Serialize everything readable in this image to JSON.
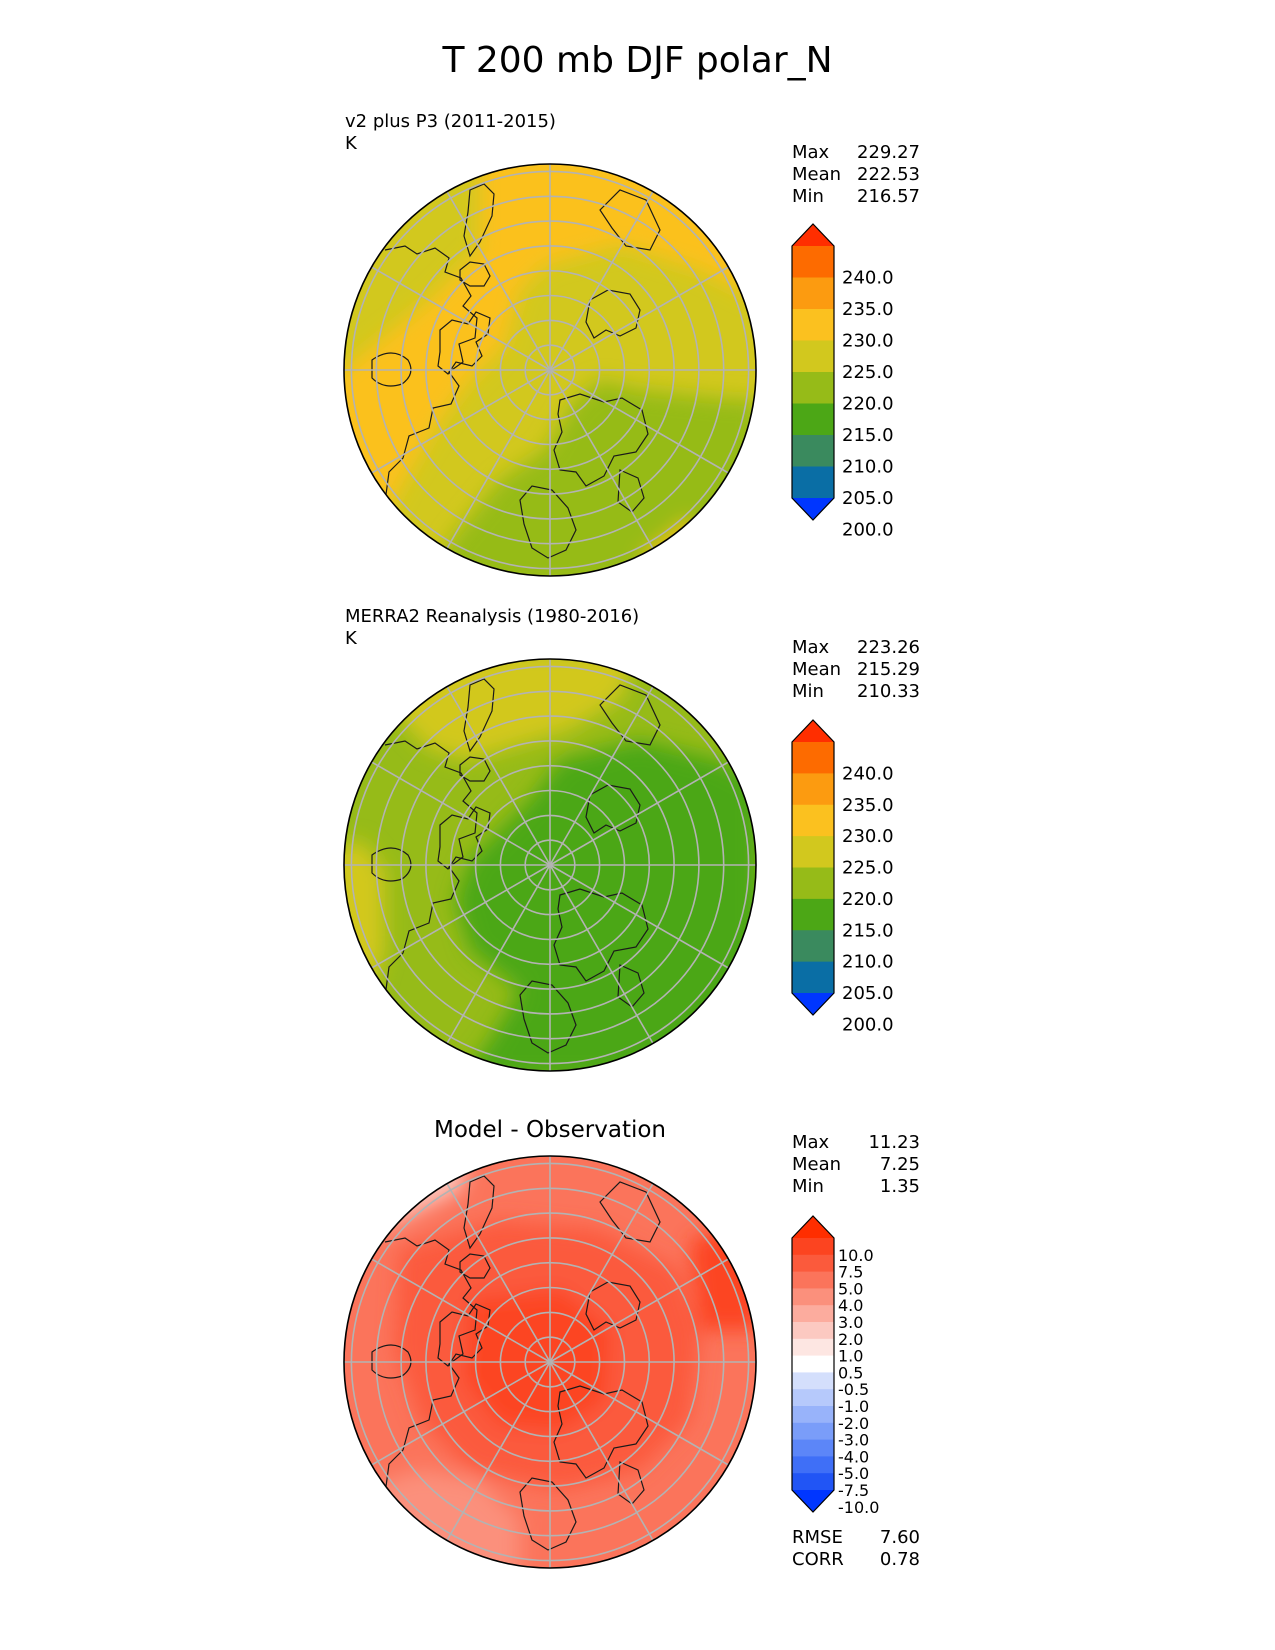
{
  "title": "T 200 mb DJF polar_N",
  "colors": {
    "abs_levels": [
      "#0036ff",
      "#0a6ea5",
      "#3a8a5e",
      "#4ca716",
      "#96bb18",
      "#d2c81e",
      "#fbc11f",
      "#fc9b10",
      "#fd6b00",
      "#ff2e00"
    ],
    "diff_levels": [
      "#0036ff",
      "#2155f5",
      "#3f6ff7",
      "#5c86f8",
      "#7a9df9",
      "#98b3fa",
      "#b6c9fb",
      "#d4dffc",
      "#ffffff",
      "#fde6e2",
      "#fcc9c1",
      "#fcac9e",
      "#fb907c",
      "#fb745b",
      "#fb5a3c",
      "#fc4420",
      "#ff2e00"
    ],
    "grid": "#b3b3b3",
    "coast": "#1a1a1a"
  },
  "panels": [
    {
      "label_line1": "v2 plus P3 (2011-2015)",
      "label_line2": "K",
      "stats": [
        {
          "name": "Max",
          "value": "229.27"
        },
        {
          "name": "Mean",
          "value": "222.53"
        },
        {
          "name": "Min",
          "value": "216.57"
        }
      ],
      "colorbar_labels": [
        "240.0",
        "235.0",
        "230.0",
        "225.0",
        "220.0",
        "215.0",
        "210.0",
        "205.0",
        "200.0"
      ]
    },
    {
      "label_line1": "MERRA2 Reanalysis (1980-2016)",
      "label_line2": "K",
      "stats": [
        {
          "name": "Max",
          "value": "223.26"
        },
        {
          "name": "Mean",
          "value": "215.29"
        },
        {
          "name": "Min",
          "value": "210.33"
        }
      ],
      "colorbar_labels": [
        "240.0",
        "235.0",
        "230.0",
        "225.0",
        "220.0",
        "215.0",
        "210.0",
        "205.0",
        "200.0"
      ]
    },
    {
      "title": "Model - Observation",
      "stats": [
        {
          "name": "Max",
          "value": "11.23"
        },
        {
          "name": "Mean",
          "value": "7.25"
        },
        {
          "name": "Min",
          "value": "1.35"
        }
      ],
      "colorbar_labels": [
        "10.0",
        "7.5",
        "5.0",
        "4.0",
        "3.0",
        "2.0",
        "1.0",
        "0.5",
        "-0.5",
        "-1.0",
        "-2.0",
        "-3.0",
        "-4.0",
        "-5.0",
        "-7.5",
        "-10.0"
      ],
      "footer_stats": [
        {
          "name": "RMSE",
          "value": "7.60"
        },
        {
          "name": "CORR",
          "value": "0.78"
        }
      ]
    }
  ],
  "chart_data": [
    {
      "type": "heatmap",
      "title": "v2 plus P3 (2011-2015)",
      "units": "K",
      "projection": "north polar stereographic",
      "colorbar_levels": [
        200,
        205,
        210,
        215,
        220,
        225,
        230,
        235,
        240
      ],
      "colorbar_extend": "both",
      "max": 229.27,
      "mean": 222.53,
      "min": 216.57
    },
    {
      "type": "heatmap",
      "title": "MERRA2 Reanalysis (1980-2016)",
      "units": "K",
      "projection": "north polar stereographic",
      "colorbar_levels": [
        200,
        205,
        210,
        215,
        220,
        225,
        230,
        235,
        240
      ],
      "colorbar_extend": "both",
      "max": 223.26,
      "mean": 215.29,
      "min": 210.33
    },
    {
      "type": "heatmap",
      "title": "Model - Observation",
      "projection": "north polar stereographic",
      "colorbar_levels": [
        -10,
        -7.5,
        -5,
        -4,
        -3,
        -2,
        -1,
        -0.5,
        0.5,
        1,
        2,
        3,
        4,
        5,
        7.5,
        10
      ],
      "colorbar_extend": "both",
      "max": 11.23,
      "mean": 7.25,
      "min": 1.35,
      "rmse": 7.6,
      "corr": 0.78
    }
  ]
}
